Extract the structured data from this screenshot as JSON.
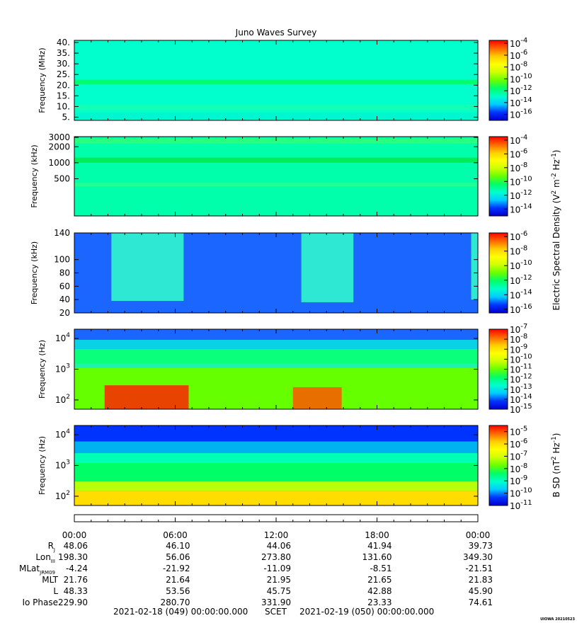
{
  "chart_data": {
    "type": "heatmap",
    "title": "Juno Waves Survey",
    "colorscale": [
      "#0000cc",
      "#0033ff",
      "#00ccff",
      "#00ffcc",
      "#00ff66",
      "#66ff00",
      "#ccff00",
      "#ffff00",
      "#ffcc00",
      "#ff6600",
      "#ff0000"
    ],
    "panels": [
      {
        "ylabel": "Frequency (MHz)",
        "yscale": "linear",
        "ylim": [
          3.5,
          41
        ],
        "yticks": [
          {
            "value": 40,
            "label": "40."
          },
          {
            "value": 35,
            "label": "35."
          },
          {
            "value": 30,
            "label": "30."
          },
          {
            "value": 25,
            "label": "25."
          },
          {
            "value": 20,
            "label": "20."
          },
          {
            "value": 15,
            "label": "15."
          },
          {
            "value": 10,
            "label": "10."
          },
          {
            "value": 5,
            "label": "5."
          }
        ],
        "colorbar": {
          "labels": [
            {
              "base": "10",
              "exp": "-4",
              "level": -4
            },
            {
              "base": "10",
              "exp": "-6",
              "level": -6
            },
            {
              "base": "10",
              "exp": "-8",
              "level": -8
            },
            {
              "base": "10",
              "exp": "-10",
              "level": -10
            },
            {
              "base": "10",
              "exp": "-12",
              "level": -12
            },
            {
              "base": "10",
              "exp": "-14",
              "level": -14
            },
            {
              "base": "10",
              "exp": "-16",
              "level": -16
            }
          ],
          "range": [
            -17,
            -3.5
          ]
        },
        "background": "#00ffcc",
        "bands": [
          {
            "y0": 4,
            "y1": 7,
            "color": "#00f0d0",
            "opacity": 0.6
          },
          {
            "y0": 20.5,
            "y1": 22.5,
            "color": "#00ff66",
            "opacity": 1
          },
          {
            "y0": 8,
            "y1": 11,
            "color": "#33ff99",
            "opacity": 0.35
          }
        ],
        "bursts": []
      },
      {
        "ylabel": "Frequency (kHz)",
        "yscale": "log",
        "ylim": [
          100,
          3100
        ],
        "yticks": [
          {
            "value": 3000,
            "label": "3000"
          },
          {
            "value": 2000,
            "label": "2000"
          },
          {
            "value": 1000,
            "label": "1000"
          },
          {
            "value": 500,
            "label": "500"
          }
        ],
        "colorbar": {
          "labels": [
            {
              "base": "10",
              "exp": "-4",
              "level": -4
            },
            {
              "base": "10",
              "exp": "-6",
              "level": -6
            },
            {
              "base": "10",
              "exp": "-8",
              "level": -8
            },
            {
              "base": "10",
              "exp": "-10",
              "level": -10
            },
            {
              "base": "10",
              "exp": "-12",
              "level": -12
            },
            {
              "base": "10",
              "exp": "-14",
              "level": -14
            }
          ],
          "range": [
            -15,
            -3.5
          ]
        },
        "background": "#00ffaa",
        "bands": [
          {
            "y0": 2300,
            "y1": 2900,
            "color": "#33ff77",
            "opacity": 0.8
          },
          {
            "y0": 1000,
            "y1": 1250,
            "color": "#00ee55",
            "opacity": 1
          },
          {
            "y0": 360,
            "y1": 420,
            "color": "#33ff88",
            "opacity": 0.7
          }
        ],
        "bursts": []
      },
      {
        "ylabel": "Frequency (kHz)",
        "yscale": "linear",
        "ylim": [
          20,
          140
        ],
        "yticks": [
          {
            "value": 140,
            "label": "140"
          },
          {
            "value": 100,
            "label": "100"
          },
          {
            "value": 80,
            "label": "80"
          },
          {
            "value": 60,
            "label": "60"
          },
          {
            "value": 40,
            "label": "40"
          },
          {
            "value": 20,
            "label": "20"
          }
        ],
        "colorbar": {
          "labels": [
            {
              "base": "10",
              "exp": "-6",
              "level": -6
            },
            {
              "base": "10",
              "exp": "-8",
              "level": -8
            },
            {
              "base": "10",
              "exp": "-10",
              "level": -10
            },
            {
              "base": "10",
              "exp": "-12",
              "level": -12
            },
            {
              "base": "10",
              "exp": "-14",
              "level": -14
            },
            {
              "base": "10",
              "exp": "-16",
              "level": -16
            }
          ],
          "range": [
            -16.5,
            -5.5
          ]
        },
        "background": "#1a66ff",
        "bands": [],
        "bursts": [
          {
            "t0": 2.2,
            "t1": 6.5,
            "y0": 38,
            "y1": 140,
            "color": "#33ffcc"
          },
          {
            "t0": 13.5,
            "t1": 16.6,
            "y0": 36,
            "y1": 140,
            "color": "#33ffcc"
          },
          {
            "t0": 23.6,
            "t1": 24,
            "y0": 40,
            "y1": 140,
            "color": "#33ffcc"
          }
        ]
      },
      {
        "ylabel": "Frequency (Hz)",
        "yscale": "log",
        "ylim": [
          50,
          20000
        ],
        "yticks": [
          {
            "value": 10000,
            "base": "10",
            "exp": "4"
          },
          {
            "value": 1000,
            "base": "10",
            "exp": "3"
          },
          {
            "value": 100,
            "base": "10",
            "exp": "2"
          }
        ],
        "colorbar": {
          "labels": [
            {
              "base": "10",
              "exp": "-7",
              "level": -7
            },
            {
              "base": "10",
              "exp": "-8",
              "level": -8
            },
            {
              "base": "10",
              "exp": "-9",
              "level": -9
            },
            {
              "base": "10",
              "exp": "-10",
              "level": -10
            },
            {
              "base": "10",
              "exp": "-11",
              "level": -11
            },
            {
              "base": "10",
              "exp": "-12",
              "level": -12
            },
            {
              "base": "10",
              "exp": "-13",
              "level": -13
            },
            {
              "base": "10",
              "exp": "-14",
              "level": -14
            },
            {
              "base": "10",
              "exp": "-15",
              "level": -15
            }
          ],
          "range": [
            -15,
            -7
          ]
        },
        "background": "#66ff00",
        "bands": [
          {
            "y0": 9000,
            "y1": 20000,
            "color": "#1a66ff",
            "opacity": 1
          },
          {
            "y0": 4500,
            "y1": 9000,
            "color": "#00ccff",
            "opacity": 0.9
          },
          {
            "y0": 1500,
            "y1": 4500,
            "color": "#00ff88",
            "opacity": 0.9
          },
          {
            "y0": 1100,
            "y1": 1500,
            "color": "#00eeee",
            "opacity": 0.7
          }
        ],
        "bursts": [
          {
            "t0": 1.8,
            "t1": 6.8,
            "y0": 50,
            "y1": 300,
            "color": "#ff2200"
          },
          {
            "t0": 13.0,
            "t1": 15.9,
            "y0": 50,
            "y1": 260,
            "color": "#ff5500"
          }
        ]
      },
      {
        "ylabel": "Frequency (Hz)",
        "yscale": "log",
        "ylim": [
          50,
          20000
        ],
        "yticks": [
          {
            "value": 10000,
            "base": "10",
            "exp": "4"
          },
          {
            "value": 1000,
            "base": "10",
            "exp": "3"
          },
          {
            "value": 100,
            "base": "10",
            "exp": "2"
          }
        ],
        "colorbar": {
          "labels": [
            {
              "base": "10",
              "exp": "-5",
              "level": -5
            },
            {
              "base": "10",
              "exp": "-6",
              "level": -6
            },
            {
              "base": "10",
              "exp": "-7",
              "level": -7
            },
            {
              "base": "10",
              "exp": "-8",
              "level": -8
            },
            {
              "base": "10",
              "exp": "-9",
              "level": -9
            },
            {
              "base": "10",
              "exp": "-10",
              "level": -10
            },
            {
              "base": "10",
              "exp": "-11",
              "level": -11
            }
          ],
          "range": [
            -11,
            -4.5
          ]
        },
        "background": "#00ff66",
        "bands": [
          {
            "y0": 6000,
            "y1": 20000,
            "color": "#0033ff",
            "opacity": 1
          },
          {
            "y0": 2500,
            "y1": 6000,
            "color": "#00aaff",
            "opacity": 0.9
          },
          {
            "y0": 1200,
            "y1": 2500,
            "color": "#00ffcc",
            "opacity": 0.8
          },
          {
            "y0": 150,
            "y1": 300,
            "color": "#ccff00",
            "opacity": 0.9
          },
          {
            "y0": 50,
            "y1": 150,
            "color": "#ffdd00",
            "opacity": 1
          }
        ],
        "bursts": []
      }
    ],
    "colorbar_titles": {
      "electric": {
        "text": "Electric Spectral Density (V",
        "sup1": "2",
        "mid": " m",
        "sup2": "-2",
        "mid2": " Hz",
        "sup3": "-1",
        "end": ")"
      },
      "magnetic": {
        "text": "B SD (nT",
        "sup1": "2",
        "mid": " Hz",
        "sup2": "-1",
        "end": ")"
      }
    },
    "x": {
      "ticks": [
        "00:00",
        "06:00",
        "12:00",
        "18:00",
        "00:00"
      ],
      "hours": [
        0,
        6,
        12,
        18,
        24
      ]
    },
    "ephemeris": [
      {
        "label": "R",
        "sub": "J",
        "values": [
          "48.06",
          "46.10",
          "44.06",
          "41.94",
          "39.73"
        ]
      },
      {
        "label": "Lon",
        "sub": "III",
        "values": [
          "198.30",
          "56.06",
          "273.80",
          "131.60",
          "349.30"
        ]
      },
      {
        "label": "MLat",
        "sub": "JRM09",
        "values": [
          "-4.24",
          "-21.92",
          "-11.09",
          "-8.51",
          "-21.51"
        ]
      },
      {
        "label": "MLT",
        "sub": "",
        "values": [
          "21.76",
          "21.64",
          "21.95",
          "21.65",
          "21.83"
        ]
      },
      {
        "label": "L",
        "sub": "",
        "values": [
          "48.33",
          "53.56",
          "45.75",
          "42.88",
          "45.90"
        ]
      },
      {
        "label": "Io Phase",
        "sub": "",
        "values": [
          "229.90",
          "280.70",
          "331.90",
          "23.33",
          "74.61"
        ]
      }
    ],
    "footer": {
      "start": "2021-02-18 (049) 00:00:00.000",
      "scet": "SCET",
      "end": "2021-02-19 (050) 00:00:00.000"
    },
    "stamp": "UIOWA 20210523"
  }
}
